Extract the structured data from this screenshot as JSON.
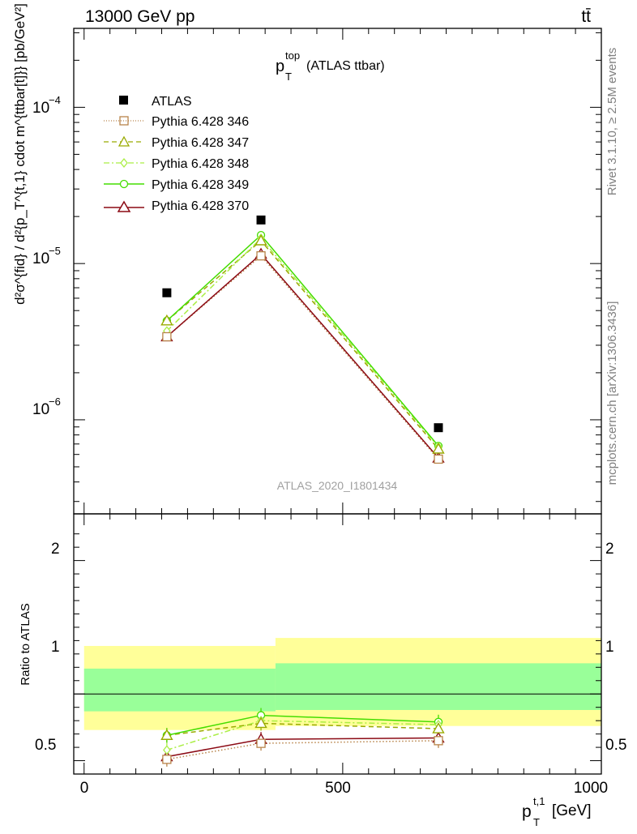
{
  "header": {
    "energy_label": "13000 GeV pp",
    "process_label": "tt̄"
  },
  "side_labels": {
    "rivet": "Rivet 3.1.10, ≥ 2.5M events",
    "mcplots": "mcplots.cern.ch [arXiv:1306.3436]"
  },
  "chart_data": [
    {
      "type": "line",
      "panel": "main",
      "title": "(ATLAS ttbar)",
      "title_main": "p",
      "title_sup": "top",
      "title_sub": "T",
      "watermark": "ATLAS_2020_I1801434",
      "ylabel": "d²σ^{fid} / d²{p_T^{t,1} cdot m^{ttbar[t]}} [pb/GeV²]",
      "yscale": "log",
      "ylim": [
        2.5e-07,
        0.00032
      ],
      "xlim": [
        -20,
        1000
      ],
      "ytick_labels": [
        {
          "base": "10",
          "exp": "−4",
          "value": 0.0001
        },
        {
          "base": "10",
          "exp": "−5",
          "value": 1e-05
        },
        {
          "base": "10",
          "exp": "−6",
          "value": 1e-06
        }
      ],
      "legend_position": "upper-left",
      "x": [
        160,
        342,
        685
      ],
      "series": [
        {
          "name": "ATLAS",
          "marker": "filled-square",
          "color": "#000000",
          "line": "none",
          "values": [
            6.5e-06,
            1.9e-05,
            8.9e-07
          ]
        },
        {
          "name": "Pythia 6.428 346",
          "marker": "open-square",
          "color": "#b8844a",
          "line": "dotted",
          "values": [
            3.4e-06,
            1.12e-05,
            5.6e-07
          ]
        },
        {
          "name": "Pythia 6.428 347",
          "marker": "open-triangle",
          "color": "#99aa00",
          "line": "dashed",
          "values": [
            4.3e-06,
            1.4e-05,
            6.5e-07
          ]
        },
        {
          "name": "Pythia 6.428 348",
          "marker": "open-diamond",
          "color": "#aaee44",
          "line": "dashdot",
          "values": [
            3.7e-06,
            1.45e-05,
            6.7e-07
          ]
        },
        {
          "name": "Pythia 6.428 349",
          "marker": "open-cross",
          "color": "#44dd00",
          "line": "solid",
          "values": [
            4.3e-06,
            1.52e-05,
            6.8e-07
          ]
        },
        {
          "name": "Pythia 6.428 370",
          "marker": "open-triangle",
          "color": "#8b0a14",
          "line": "solid",
          "values": [
            3.4e-06,
            1.15e-05,
            5.7e-07
          ]
        }
      ]
    },
    {
      "type": "line",
      "panel": "ratio",
      "ylabel": "Ratio to ATLAS",
      "xlabel_main": "p",
      "xlabel_sup": "t,1",
      "xlabel_sub": "T",
      "xlabel_unit": "[GeV]",
      "ylim": [
        0.4,
        2.35
      ],
      "xlim": [
        -20,
        1000
      ],
      "yticks": [
        0.5,
        1,
        2
      ],
      "ytick_labels": [
        "0.5",
        "1",
        "2"
      ],
      "xticks": [
        0,
        500,
        1000
      ],
      "xtick_labels": [
        "0",
        "500",
        "1000"
      ],
      "bands": [
        {
          "x0": 0,
          "x1": 370,
          "yellow": [
            0.73,
            1.36
          ],
          "green": [
            0.87,
            1.19
          ]
        },
        {
          "x0": 370,
          "x1": 1000,
          "yellow": [
            0.76,
            1.42
          ],
          "green": [
            0.88,
            1.23
          ]
        }
      ],
      "reference": 1,
      "x": [
        160,
        342,
        685
      ],
      "series": [
        {
          "name": "Pythia 6.428 346",
          "marker": "open-square",
          "color": "#b8844a",
          "line": "dotted",
          "values": [
            0.51,
            0.63,
            0.65
          ]
        },
        {
          "name": "Pythia 6.428 347",
          "marker": "open-triangle",
          "color": "#99aa00",
          "line": "dashed",
          "values": [
            0.69,
            0.78,
            0.74
          ]
        },
        {
          "name": "Pythia 6.428 348",
          "marker": "open-diamond",
          "color": "#aaee44",
          "line": "dashdot",
          "values": [
            0.58,
            0.8,
            0.77
          ]
        },
        {
          "name": "Pythia 6.428 349",
          "marker": "open-cross",
          "color": "#44dd00",
          "line": "solid",
          "values": [
            0.69,
            0.84,
            0.79
          ]
        },
        {
          "name": "Pythia 6.428 370",
          "marker": "open-triangle",
          "color": "#8b0a14",
          "line": "solid",
          "values": [
            0.53,
            0.66,
            0.67
          ]
        }
      ]
    }
  ]
}
